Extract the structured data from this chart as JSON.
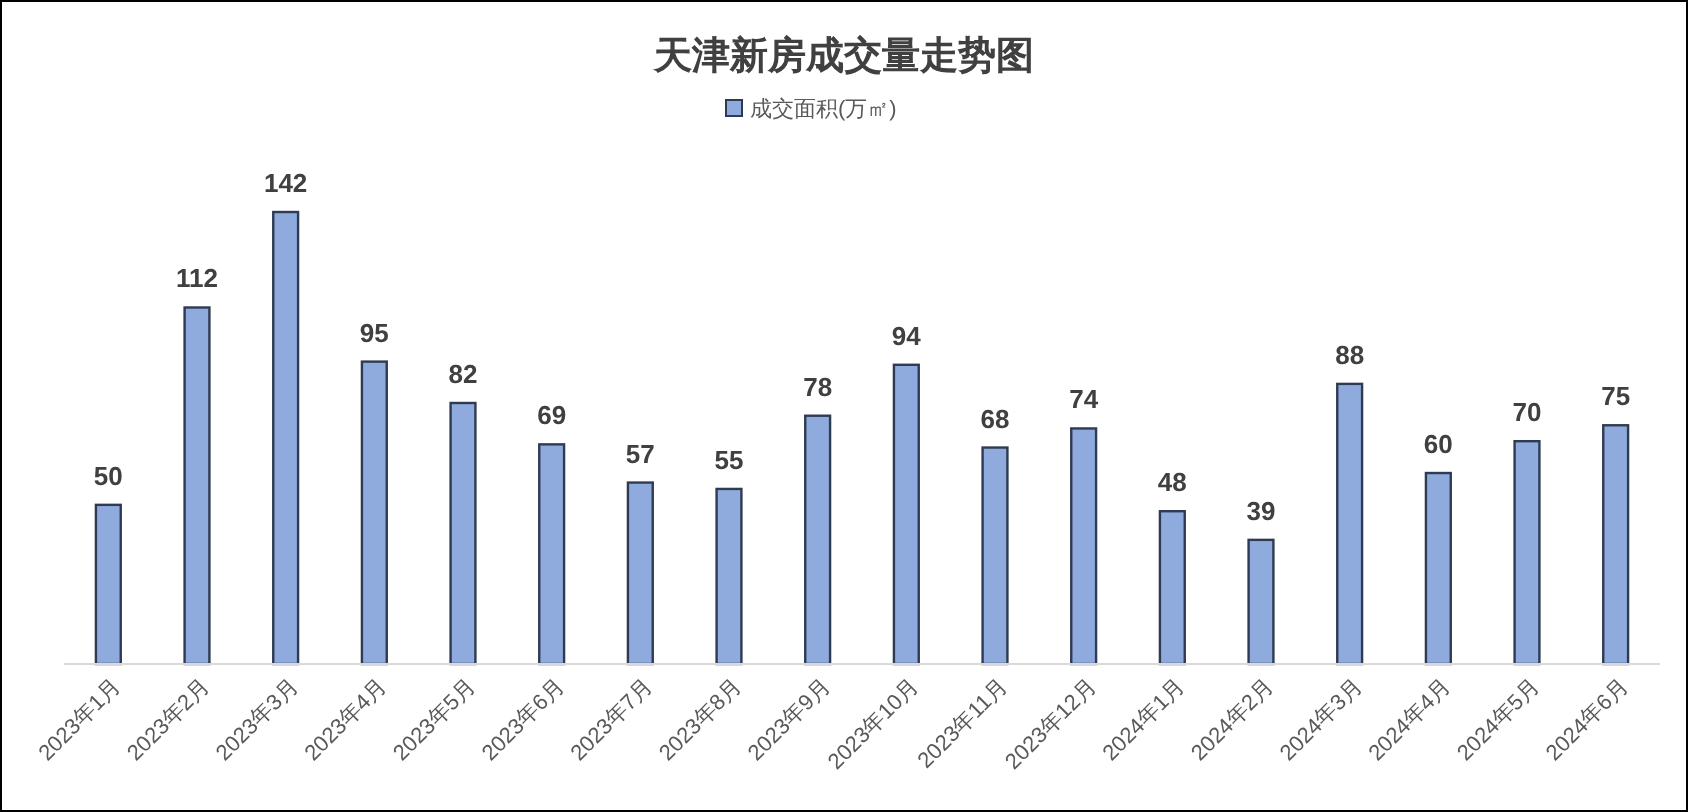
{
  "chart_data": {
    "type": "bar",
    "title": "天津新房成交量走势图",
    "categories": [
      "2023年1月",
      "2023年2月",
      "2023年3月",
      "2023年4月",
      "2023年5月",
      "2023年6月",
      "2023年7月",
      "2023年8月",
      "2023年9月",
      "2023年10月",
      "2023年11月",
      "2023年12月",
      "2024年1月",
      "2024年2月",
      "2024年3月",
      "2024年4月",
      "2024年5月",
      "2024年6月"
    ],
    "series": [
      {
        "name": "成交面积(万㎡)",
        "color": "#8faadc",
        "values": [
          50,
          112,
          142,
          95,
          82,
          69,
          57,
          55,
          78,
          94,
          68,
          74,
          48,
          39,
          88,
          60,
          70,
          75
        ]
      }
    ],
    "data_labels": true,
    "legend": "top"
  }
}
